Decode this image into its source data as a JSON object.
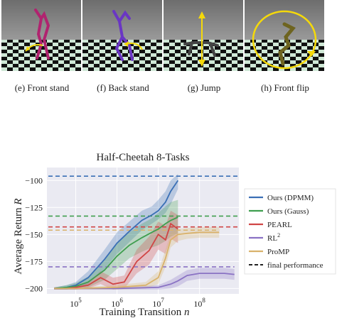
{
  "panels": [
    {
      "caption": "(e) Front stand",
      "icon": "front-stand-robot"
    },
    {
      "caption": "(f) Back stand",
      "icon": "back-stand-robot"
    },
    {
      "caption": "(g) Jump",
      "icon": "jump-robot"
    },
    {
      "caption": "(h) Front flip",
      "icon": "front-flip-robot"
    }
  ],
  "chart_data": {
    "type": "line",
    "title": "Half-Cheetah 8-Tasks",
    "xlabel": "Training Transition n",
    "xlabel_text": "Training Transition ",
    "xlabel_var": "n",
    "ylabel": "Average Return R",
    "ylabel_text": "Average Return ",
    "ylabel_var": "R",
    "x_scale": "log",
    "xlim": [
      20000,
      900000000
    ],
    "ylim": [
      -205,
      -88
    ],
    "x_ticks": [
      100000,
      1000000,
      10000000,
      100000000
    ],
    "x_tick_labels": [
      {
        "base": "10",
        "exp": "5"
      },
      {
        "base": "10",
        "exp": "6"
      },
      {
        "base": "10",
        "exp": "7"
      },
      {
        "base": "10",
        "exp": "8"
      }
    ],
    "y_ticks": [
      -100,
      -125,
      -150,
      -175,
      -200
    ],
    "y_tick_labels": [
      "−100",
      "−125",
      "−150",
      "−175",
      "−200"
    ],
    "grid": true,
    "legend_position": "right",
    "series": [
      {
        "name": "Ours (DPMM)",
        "color": "#3a6fb5",
        "final": -96,
        "x": [
          30000,
          60000,
          100000,
          200000,
          500000,
          1000000,
          2000000,
          4000000,
          7000000,
          10000000,
          15000000,
          20000000,
          30000000
        ],
        "y": [
          -200,
          -199,
          -197,
          -190,
          -173,
          -158,
          -147,
          -137,
          -132,
          -128,
          -120,
          -110,
          -100
        ],
        "lo": [
          -201,
          -201,
          -200,
          -196,
          -182,
          -168,
          -157,
          -146,
          -140,
          -136,
          -130,
          -122,
          -108
        ],
        "hi": [
          -199,
          -197,
          -194,
          -184,
          -164,
          -148,
          -138,
          -128,
          -124,
          -118,
          -110,
          -100,
          -94
        ]
      },
      {
        "name": "Ours (Gauss)",
        "color": "#3f9e4f",
        "final": -133,
        "x": [
          30000,
          60000,
          100000,
          200000,
          500000,
          1000000,
          2000000,
          4000000,
          7000000,
          10000000,
          15000000,
          20000000,
          30000000
        ],
        "y": [
          -200,
          -199,
          -198,
          -194,
          -183,
          -170,
          -160,
          -153,
          -148,
          -145,
          -140,
          -137,
          -134
        ],
        "lo": [
          -201,
          -201,
          -201,
          -199,
          -192,
          -182,
          -172,
          -166,
          -162,
          -160,
          -156,
          -152,
          -149
        ],
        "hi": [
          -199,
          -197,
          -195,
          -189,
          -174,
          -158,
          -148,
          -140,
          -135,
          -130,
          -124,
          -120,
          -118
        ]
      },
      {
        "name": "PEARL",
        "color": "#d04545",
        "final": -143,
        "x": [
          30000,
          60000,
          100000,
          200000,
          400000,
          800000,
          1500000,
          3000000,
          6000000,
          10000000,
          15000000,
          20000000,
          30000000
        ],
        "y": [
          -200,
          -200,
          -199,
          -197,
          -190,
          -196,
          -194,
          -175,
          -165,
          -150,
          -155,
          -140,
          -145
        ],
        "lo": [
          -201,
          -201,
          -201,
          -200,
          -196,
          -201,
          -200,
          -186,
          -178,
          -164,
          -168,
          -154,
          -158
        ],
        "hi": [
          -199,
          -199,
          -197,
          -194,
          -184,
          -190,
          -188,
          -164,
          -152,
          -138,
          -142,
          -128,
          -132
        ]
      },
      {
        "name": "RL²",
        "name_text": "RL",
        "name_sup": "2",
        "color": "#8a72c4",
        "final": -180,
        "x": [
          30000,
          100000,
          1000000,
          10000000,
          20000000,
          30000000,
          50000000,
          100000000,
          200000000,
          400000000,
          700000000
        ],
        "y": [
          -200,
          -200,
          -200,
          -199,
          -196,
          -193,
          -188,
          -186,
          -186,
          -186,
          -187
        ],
        "lo": [
          -201,
          -201,
          -201,
          -201,
          -200,
          -198,
          -193,
          -191,
          -191,
          -191,
          -192
        ],
        "hi": [
          -199,
          -199,
          -199,
          -197,
          -192,
          -188,
          -183,
          -181,
          -181,
          -181,
          -182
        ],
        "hline_xmax": 700000000
      },
      {
        "name": "ProMP",
        "color": "#d9b26b",
        "final": -146,
        "x": [
          30000,
          100000,
          1000000,
          5000000,
          10000000,
          15000000,
          20000000,
          30000000,
          50000000,
          100000000,
          200000000,
          300000000
        ],
        "y": [
          -200,
          -200,
          -199,
          -197,
          -190,
          -172,
          -155,
          -150,
          -149,
          -148,
          -148,
          -148
        ],
        "lo": [
          -201,
          -201,
          -201,
          -200,
          -196,
          -180,
          -162,
          -156,
          -154,
          -153,
          -153,
          -153
        ],
        "hi": [
          -199,
          -199,
          -197,
          -194,
          -184,
          -164,
          -148,
          -145,
          -144,
          -143,
          -143,
          -143
        ],
        "hline_xmax": 300000000
      }
    ],
    "legend_extra": {
      "label": "final performance",
      "style": "dashed",
      "color": "#222222"
    }
  }
}
